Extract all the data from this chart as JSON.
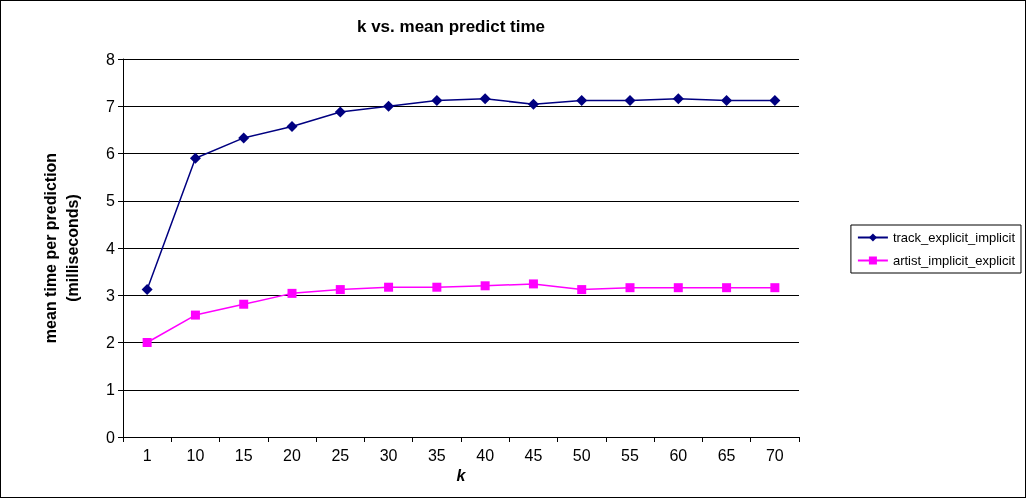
{
  "chart_data": {
    "type": "line",
    "title": "k vs. mean predict time",
    "xlabel": "k",
    "ylabel": "mean time per prediction\n(milliseconds)",
    "categories": [
      "1",
      "10",
      "15",
      "20",
      "25",
      "30",
      "35",
      "40",
      "45",
      "50",
      "55",
      "60",
      "65",
      "70"
    ],
    "series": [
      {
        "name": "track_explicit_implicit",
        "color": "#000080",
        "marker": "diamond",
        "values": [
          3.12,
          5.9,
          6.33,
          6.57,
          6.88,
          7.0,
          7.12,
          7.16,
          7.04,
          7.12,
          7.12,
          7.16,
          7.12,
          7.12
        ]
      },
      {
        "name": "artist_implicit_explicit",
        "color": "#ff00ff",
        "marker": "square",
        "values": [
          2.0,
          2.58,
          2.81,
          3.04,
          3.12,
          3.17,
          3.17,
          3.2,
          3.24,
          3.12,
          3.16,
          3.16,
          3.16,
          3.16
        ]
      }
    ],
    "ylim": [
      0,
      8
    ],
    "yticks": [
      0,
      1,
      2,
      3,
      4,
      5,
      6,
      7,
      8
    ],
    "grid": "y",
    "legend": "right",
    "line_style": "solid"
  }
}
